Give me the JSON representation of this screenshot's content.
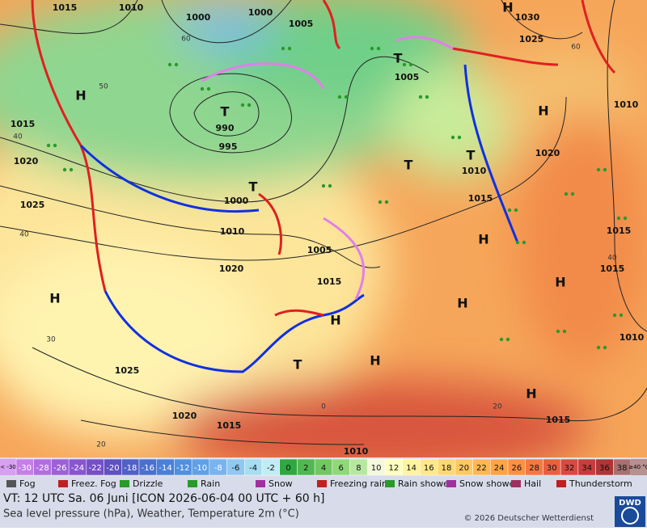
{
  "map": {
    "pressure_labels": [
      "1015",
      "1010",
      "1000",
      "1000",
      "1005",
      "1030",
      "1025",
      "1005",
      "990",
      "995",
      "1015",
      "1020",
      "1025",
      "1000",
      "1010",
      "1020",
      "1005",
      "1015",
      "1015",
      "1020",
      "1010",
      "1015",
      "1015",
      "1010",
      "1010",
      "1025",
      "1020",
      "1015",
      "1015",
      "1010"
    ],
    "centers": [
      "H",
      "T",
      "T",
      "H",
      "T",
      "H",
      "H",
      "H",
      "H",
      "T",
      "H",
      "H",
      "H",
      "T",
      "T",
      "H"
    ],
    "isotherm_labels": [
      "60",
      "50",
      "40",
      "40",
      "30",
      "20",
      "60",
      "40",
      "20",
      "0"
    ]
  },
  "temperature_scale": {
    "below": "< -30",
    "labels": [
      "-30",
      "-28",
      "-26",
      "-24",
      "-22",
      "-20",
      "-18",
      "-16",
      "-14",
      "-12",
      "-10",
      "-8",
      "-6",
      "-4",
      "-2",
      "0",
      "2",
      "4",
      "6",
      "8",
      "10",
      "12",
      "14",
      "16",
      "18",
      "20",
      "22",
      "24",
      "26",
      "28",
      "30",
      "32",
      "34",
      "36",
      "38"
    ],
    "colors": [
      "#c77ee8",
      "#b26ee0",
      "#9d60d8",
      "#8a55d0",
      "#7550c8",
      "#6050c0",
      "#5060c8",
      "#4a70d0",
      "#4a80d8",
      "#5090e0",
      "#60a0e8",
      "#78b4f0",
      "#90c8f0",
      "#a8dcf0",
      "#c0ecf4",
      "#30a840",
      "#50b850",
      "#70c860",
      "#90d878",
      "#b8e8a0",
      "#f4f8dc",
      "#ffffc0",
      "#fff4a0",
      "#ffe888",
      "#ffd870",
      "#ffc860",
      "#ffb850",
      "#ffa444",
      "#ff9040",
      "#f47840",
      "#e86040",
      "#d84a40",
      "#c83c3c",
      "#b03434",
      "#a87070"
    ],
    "above": "≥40 °C"
  },
  "weather_legend": [
    "Fog",
    "Freez. Fog",
    "Drizzle",
    "Rain",
    "Snow",
    "Freezing rain",
    "Rain shower",
    "Snow shower",
    "Hail",
    "Thunderstorm"
  ],
  "footer": {
    "valid_time": "VT: 12 UTC Sa.  06 Juni [ICON 2026-06-04  00 UTC + 60 h]",
    "description": "Sea level pressure (hPa), Weather, Temperature 2m (°C)",
    "copyright": "© 2026 Deutscher Wetterdienst",
    "logo": "DWD"
  }
}
